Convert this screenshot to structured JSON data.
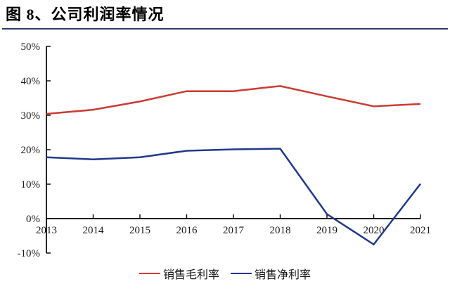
{
  "title": "图 8、公司利润率情况",
  "colors": {
    "title_text": "#000000",
    "title_underline": "#2f3a64",
    "axis": "#000000",
    "gross_margin_line": "#cc3b34",
    "net_margin_line": "#20388c"
  },
  "chart_data": {
    "type": "line",
    "title": "图 8、公司利润率情况",
    "categories": [
      "2013",
      "2014",
      "2015",
      "2016",
      "2017",
      "2018",
      "2019",
      "2020",
      "2021"
    ],
    "series": [
      {
        "name": "销售毛利率",
        "color": "#cc3b34",
        "values": [
          30.4,
          31.6,
          34.0,
          37.0,
          37.0,
          38.5,
          35.5,
          32.6,
          33.3
        ]
      },
      {
        "name": "销售净利率",
        "color": "#20388c",
        "values": [
          17.8,
          17.2,
          17.8,
          19.7,
          20.1,
          20.3,
          1.3,
          -7.5,
          10.1
        ]
      }
    ],
    "xlabel": "",
    "ylabel": "",
    "ylim": [
      -10,
      50
    ],
    "yticks": [
      50,
      40,
      30,
      20,
      10,
      0,
      -10
    ],
    "ytick_suffix": "%",
    "grid": false,
    "axis_cross_at": 0,
    "legend_position": "bottom-center"
  }
}
